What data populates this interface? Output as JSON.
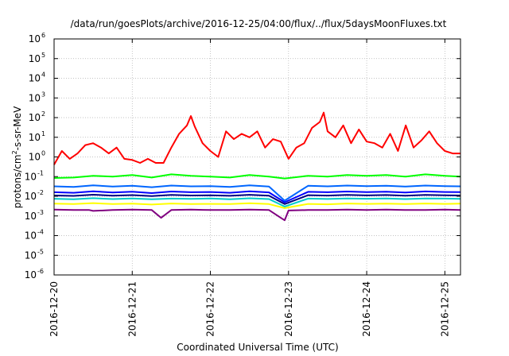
{
  "chart_data": {
    "type": "line",
    "title": "/data/run/goesPlots/archive/2016-12-25/04:00/flux/../flux/5daysMoonFluxes.txt",
    "xlabel": "Coordinated Universal Time (UTC)",
    "ylabel": {
      "base": "protons/cm",
      "sup": "2",
      "rest": "-s-sr-MeV"
    },
    "xlim": [
      0,
      5.2
    ],
    "ylim_log10": [
      -6,
      6
    ],
    "y_scale": "log",
    "grid": true,
    "x_ticks": [
      {
        "x": 0,
        "label": "2016-12-20"
      },
      {
        "x": 1,
        "label": "2016-12-21"
      },
      {
        "x": 2,
        "label": "2016-12-22"
      },
      {
        "x": 3,
        "label": "2016-12-23"
      },
      {
        "x": 4,
        "label": "2016-12-24"
      },
      {
        "x": 5,
        "label": "2016-12-25"
      }
    ],
    "y_ticks": [
      {
        "exp": -6,
        "base": "10",
        "sup": "-6"
      },
      {
        "exp": -5,
        "base": "10",
        "sup": "-5"
      },
      {
        "exp": -4,
        "base": "10",
        "sup": "-4"
      },
      {
        "exp": -3,
        "base": "10",
        "sup": "-3"
      },
      {
        "exp": -2,
        "base": "10",
        "sup": "-2"
      },
      {
        "exp": -1,
        "base": "10",
        "sup": "-1"
      },
      {
        "exp": 0,
        "base": "10",
        "sup": "0"
      },
      {
        "exp": 1,
        "base": "10",
        "sup": "1"
      },
      {
        "exp": 2,
        "base": "10",
        "sup": "2"
      },
      {
        "exp": 3,
        "base": "10",
        "sup": "3"
      },
      {
        "exp": 4,
        "base": "10",
        "sup": "4"
      },
      {
        "exp": 5,
        "base": "10",
        "sup": "5"
      },
      {
        "exp": 6,
        "base": "10",
        "sup": "6"
      }
    ],
    "series": [
      {
        "color": "#800080",
        "width": 2,
        "x": [
          0,
          0.25,
          0.45,
          0.5,
          0.75,
          1.0,
          1.25,
          1.37,
          1.5,
          1.75,
          2.0,
          2.25,
          2.5,
          2.75,
          2.9,
          2.95,
          3.0,
          3.25,
          3.5,
          3.75,
          4.0,
          4.25,
          4.5,
          4.75,
          5.0,
          5.2
        ],
        "y": [
          0.0021,
          0.002,
          0.002,
          0.0018,
          0.002,
          0.0021,
          0.002,
          0.0008,
          0.002,
          0.0021,
          0.002,
          0.002,
          0.0021,
          0.002,
          0.0008,
          0.0006,
          0.0019,
          0.002,
          0.002,
          0.0021,
          0.002,
          0.0021,
          0.002,
          0.002,
          0.0021,
          0.002
        ]
      },
      {
        "color": "#ffff00",
        "width": 2,
        "x": [
          0,
          0.25,
          0.5,
          0.75,
          1.0,
          1.25,
          1.5,
          1.75,
          2.0,
          2.25,
          2.5,
          2.75,
          2.95,
          3.25,
          3.5,
          3.75,
          4.0,
          4.25,
          4.5,
          4.75,
          5.0,
          5.2
        ],
        "y": [
          0.0042,
          0.004,
          0.0045,
          0.004,
          0.0042,
          0.0038,
          0.0043,
          0.004,
          0.0041,
          0.004,
          0.0044,
          0.004,
          0.0025,
          0.0041,
          0.0039,
          0.0043,
          0.0041,
          0.0042,
          0.004,
          0.0043,
          0.0041,
          0.0042
        ]
      },
      {
        "color": "#00cccc",
        "width": 2,
        "x": [
          0,
          0.25,
          0.5,
          0.75,
          1.0,
          1.25,
          1.5,
          1.75,
          2.0,
          2.25,
          2.5,
          2.75,
          2.95,
          3.25,
          3.5,
          3.75,
          4.0,
          4.25,
          4.5,
          4.75,
          5.0,
          5.2
        ],
        "y": [
          0.0075,
          0.007,
          0.008,
          0.0072,
          0.0078,
          0.007,
          0.0076,
          0.0074,
          0.0077,
          0.007,
          0.0079,
          0.0072,
          0.003,
          0.0076,
          0.0073,
          0.0078,
          0.0075,
          0.0077,
          0.0072,
          0.0078,
          0.0076,
          0.0074
        ]
      },
      {
        "color": "#000080",
        "width": 2,
        "x": [
          0,
          0.25,
          0.5,
          0.75,
          1.0,
          1.25,
          1.5,
          1.75,
          2.0,
          2.25,
          2.5,
          2.75,
          2.95,
          3.25,
          3.5,
          3.75,
          4.0,
          4.25,
          4.5,
          4.75,
          5.0,
          5.2
        ],
        "y": [
          0.011,
          0.0105,
          0.012,
          0.0108,
          0.0115,
          0.0102,
          0.0118,
          0.011,
          0.0112,
          0.0106,
          0.0119,
          0.0108,
          0.004,
          0.0114,
          0.0109,
          0.0117,
          0.0111,
          0.0116,
          0.0107,
          0.0118,
          0.0112,
          0.011
        ]
      },
      {
        "color": "#0000ff",
        "width": 2,
        "x": [
          0,
          0.25,
          0.5,
          0.75,
          1.0,
          1.25,
          1.5,
          1.75,
          2.0,
          2.25,
          2.5,
          2.75,
          2.95,
          3.25,
          3.5,
          3.75,
          4.0,
          4.25,
          4.5,
          4.75,
          5.0,
          5.2
        ],
        "y": [
          0.016,
          0.015,
          0.018,
          0.0155,
          0.017,
          0.0145,
          0.0175,
          0.016,
          0.0165,
          0.015,
          0.0178,
          0.0158,
          0.005,
          0.0168,
          0.016,
          0.0174,
          0.0163,
          0.017,
          0.0155,
          0.0176,
          0.0166,
          0.0162
        ]
      },
      {
        "color": "#0066ff",
        "width": 2,
        "x": [
          0,
          0.25,
          0.5,
          0.75,
          1.0,
          1.25,
          1.5,
          1.75,
          2.0,
          2.25,
          2.5,
          2.75,
          2.95,
          3.25,
          3.5,
          3.75,
          4.0,
          4.25,
          4.5,
          4.75,
          5.0,
          5.2
        ],
        "y": [
          0.032,
          0.03,
          0.036,
          0.031,
          0.034,
          0.029,
          0.035,
          0.032,
          0.033,
          0.03,
          0.036,
          0.031,
          0.006,
          0.034,
          0.032,
          0.035,
          0.033,
          0.034,
          0.031,
          0.035,
          0.033,
          0.032
        ]
      },
      {
        "color": "#00ff00",
        "width": 2,
        "x": [
          0,
          0.25,
          0.5,
          0.75,
          1.0,
          1.25,
          1.5,
          1.75,
          2.0,
          2.25,
          2.5,
          2.75,
          2.95,
          3.25,
          3.5,
          3.75,
          4.0,
          4.25,
          4.5,
          4.75,
          5.0,
          5.2
        ],
        "y": [
          0.085,
          0.09,
          0.11,
          0.1,
          0.12,
          0.09,
          0.13,
          0.11,
          0.1,
          0.09,
          0.12,
          0.1,
          0.08,
          0.11,
          0.1,
          0.12,
          0.11,
          0.12,
          0.1,
          0.13,
          0.11,
          0.1
        ]
      },
      {
        "color": "#ff0000",
        "width": 2,
        "x": [
          0,
          0.1,
          0.2,
          0.3,
          0.4,
          0.5,
          0.6,
          0.7,
          0.8,
          0.9,
          1.0,
          1.1,
          1.2,
          1.3,
          1.4,
          1.5,
          1.6,
          1.7,
          1.75,
          1.8,
          1.9,
          2.0,
          2.1,
          2.2,
          2.3,
          2.4,
          2.5,
          2.6,
          2.7,
          2.8,
          2.9,
          3.0,
          3.1,
          3.2,
          3.3,
          3.4,
          3.45,
          3.5,
          3.6,
          3.7,
          3.8,
          3.9,
          4.0,
          4.1,
          4.2,
          4.3,
          4.4,
          4.5,
          4.6,
          4.7,
          4.8,
          4.9,
          5.0,
          5.1,
          5.2
        ],
        "y": [
          0.4,
          2,
          0.8,
          1.5,
          4,
          5,
          3,
          1.5,
          3,
          0.8,
          0.7,
          0.5,
          0.8,
          0.5,
          0.5,
          3,
          15,
          40,
          120,
          35,
          5,
          2,
          1,
          20,
          8,
          15,
          10,
          20,
          3,
          8,
          6,
          0.8,
          3,
          5,
          30,
          60,
          180,
          20,
          10,
          40,
          5,
          25,
          6,
          5,
          3,
          15,
          2,
          40,
          3,
          7,
          20,
          5,
          2,
          1.5,
          1.5
        ]
      }
    ]
  }
}
